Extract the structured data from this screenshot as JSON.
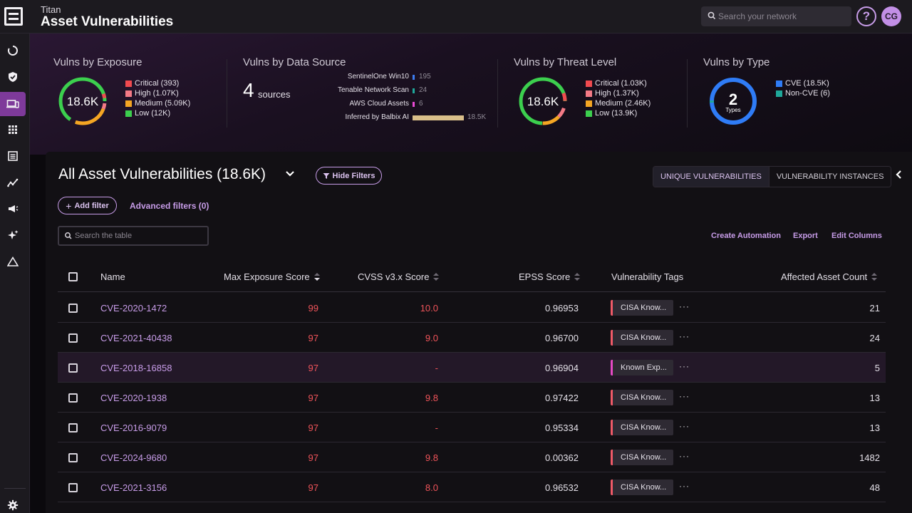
{
  "header": {
    "app_name": "Titan",
    "page_title": "Asset Vulnerabilities",
    "search_placeholder": "Search your network",
    "help_label": "?",
    "avatar_initials": "CG"
  },
  "sidebar": {
    "items": [
      "refresh-icon",
      "shield-check-icon",
      "devices-icon",
      "grid-icon",
      "list-icon",
      "trend-icon",
      "megaphone-icon",
      "sparkle-icon",
      "warning-icon"
    ],
    "active": "devices-icon",
    "bottom": "gear-icon"
  },
  "summary": {
    "exposure": {
      "title": "Vulns by Exposure",
      "center": "18.6K",
      "legend": [
        {
          "label": "Critical (393)",
          "color": "#f04a4f"
        },
        {
          "label": "High (1.07K)",
          "color": "#f47a86"
        },
        {
          "label": "Medium (5.09K)",
          "color": "#f5a623"
        },
        {
          "label": "Low (12K)",
          "color": "#3ccf4e"
        }
      ]
    },
    "data_source": {
      "title": "Vulns by Data Source",
      "count": "4",
      "count_word": "sources",
      "sources": [
        {
          "name": "SentinelOne Win10",
          "value": "195",
          "color": "#3d7cf0"
        },
        {
          "name": "Tenable Network Scan",
          "value": "24",
          "color": "#1fa89a"
        },
        {
          "name": "AWS Cloud Assets",
          "value": "6",
          "color": "#e84ad4"
        },
        {
          "name": "Inferred by Balbix AI",
          "value": "18.5K",
          "color": "#d9bf8a"
        }
      ]
    },
    "threat": {
      "title": "Vulns by Threat Level",
      "center": "18.6K",
      "legend": [
        {
          "label": "Critical (1.03K)",
          "color": "#f04a4f"
        },
        {
          "label": "High (1.37K)",
          "color": "#f47a86"
        },
        {
          "label": "Medium (2.46K)",
          "color": "#f5a623"
        },
        {
          "label": "Low (13.9K)",
          "color": "#3ccf4e"
        }
      ]
    },
    "type": {
      "title": "Vulns by Type",
      "center": "2",
      "center_sub": "Types",
      "legend": [
        {
          "label": "CVE (18.5K)",
          "color": "#2f7cf6"
        },
        {
          "label": "Non-CVE (6)",
          "color": "#1fa89a"
        }
      ]
    }
  },
  "panel": {
    "title": "All Asset Vulnerabilities",
    "count": "(18.6K)",
    "hide_filters": "Hide Filters",
    "add_filter": "Add filter",
    "advanced_filters": "Advanced filters",
    "advanced_filters_count": "(0)",
    "tab_unique": "UNIQUE VULNERABILITIES",
    "tab_instances": "VULNERABILITY INSTANCES",
    "table_search_placeholder": "Search the table",
    "create_automation": "Create Automation",
    "export": "Export",
    "edit_columns": "Edit Columns"
  },
  "table": {
    "columns": [
      "Name",
      "Max Exposure Score",
      "CVSS v3.x Score",
      "EPSS Score",
      "Vulnerability Tags",
      "Affected Asset Count"
    ],
    "rows": [
      {
        "name": "CVE-2020-1472",
        "exposure": "99",
        "cvss": "10.0",
        "epss": "0.96953",
        "tag": "CISA Know...",
        "count": "21"
      },
      {
        "name": "CVE-2021-40438",
        "exposure": "97",
        "cvss": "9.0",
        "epss": "0.96700",
        "tag": "CISA Know...",
        "count": "24"
      },
      {
        "name": "CVE-2018-16858",
        "exposure": "97",
        "cvss": "-",
        "epss": "0.96904",
        "tag": "Known Exp...",
        "count": "5"
      },
      {
        "name": "CVE-2020-1938",
        "exposure": "97",
        "cvss": "9.8",
        "epss": "0.97422",
        "tag": "CISA Know...",
        "count": "13"
      },
      {
        "name": "CVE-2016-9079",
        "exposure": "97",
        "cvss": "-",
        "epss": "0.95334",
        "tag": "CISA Know...",
        "count": "13"
      },
      {
        "name": "CVE-2024-9680",
        "exposure": "97",
        "cvss": "9.8",
        "epss": "0.00362",
        "tag": "CISA Know...",
        "count": "1482"
      },
      {
        "name": "CVE-2021-3156",
        "exposure": "97",
        "cvss": "8.0",
        "epss": "0.96532",
        "tag": "CISA Know...",
        "count": "48"
      }
    ],
    "more_label": "···"
  }
}
